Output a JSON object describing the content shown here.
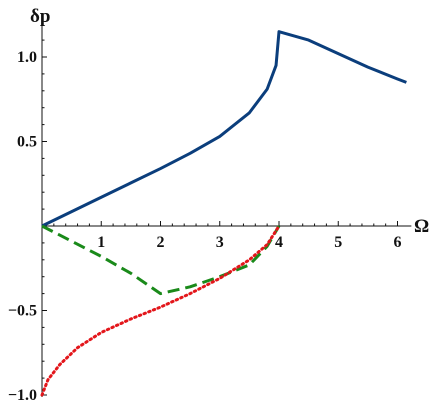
{
  "chart_data": {
    "type": "line",
    "ylabel": "δp",
    "xlabel": "Ω",
    "xlim": [
      0,
      6.2
    ],
    "ylim": [
      -1.0,
      1.2
    ],
    "x_ticks": [
      {
        "value": 1,
        "label": "1"
      },
      {
        "value": 2,
        "label": "2"
      },
      {
        "value": 3,
        "label": "3"
      },
      {
        "value": 4,
        "label": "4"
      },
      {
        "value": 5,
        "label": "5"
      },
      {
        "value": 6,
        "label": "6"
      }
    ],
    "y_ticks": [
      {
        "value": 1.0,
        "label": "1.0"
      },
      {
        "value": 0.5,
        "label": "0.5"
      },
      {
        "value": -0.5,
        "label": "−0.5"
      },
      {
        "value": -1.0,
        "label": "−1.0"
      }
    ],
    "grid": false,
    "series": [
      {
        "style": "solid",
        "color": "#0b3e7c",
        "x": [
          0,
          0.5,
          1.0,
          1.5,
          2.0,
          2.5,
          3.0,
          3.5,
          3.8,
          3.95,
          4.0,
          4.5,
          5.0,
          5.5,
          6.0,
          6.15
        ],
        "y": [
          0,
          0.085,
          0.17,
          0.255,
          0.34,
          0.43,
          0.53,
          0.67,
          0.81,
          0.95,
          1.15,
          1.1,
          1.02,
          0.94,
          0.87,
          0.85
        ]
      },
      {
        "style": "dashed",
        "color": "#1a8a1a",
        "x": [
          0,
          0.5,
          1.0,
          1.5,
          2.0,
          2.5,
          3.0,
          3.5,
          3.8,
          4.0
        ],
        "y": [
          0,
          -0.09,
          -0.18,
          -0.28,
          -0.4,
          -0.36,
          -0.3,
          -0.23,
          -0.12,
          0
        ]
      },
      {
        "style": "dotted",
        "color": "#e3161b",
        "x": [
          0,
          0.1,
          0.3,
          0.6,
          1.0,
          1.5,
          2.0,
          2.5,
          3.0,
          3.5,
          3.8,
          4.0
        ],
        "y": [
          -1.0,
          -0.91,
          -0.82,
          -0.72,
          -0.63,
          -0.55,
          -0.48,
          -0.4,
          -0.31,
          -0.2,
          -0.11,
          0
        ]
      }
    ]
  }
}
